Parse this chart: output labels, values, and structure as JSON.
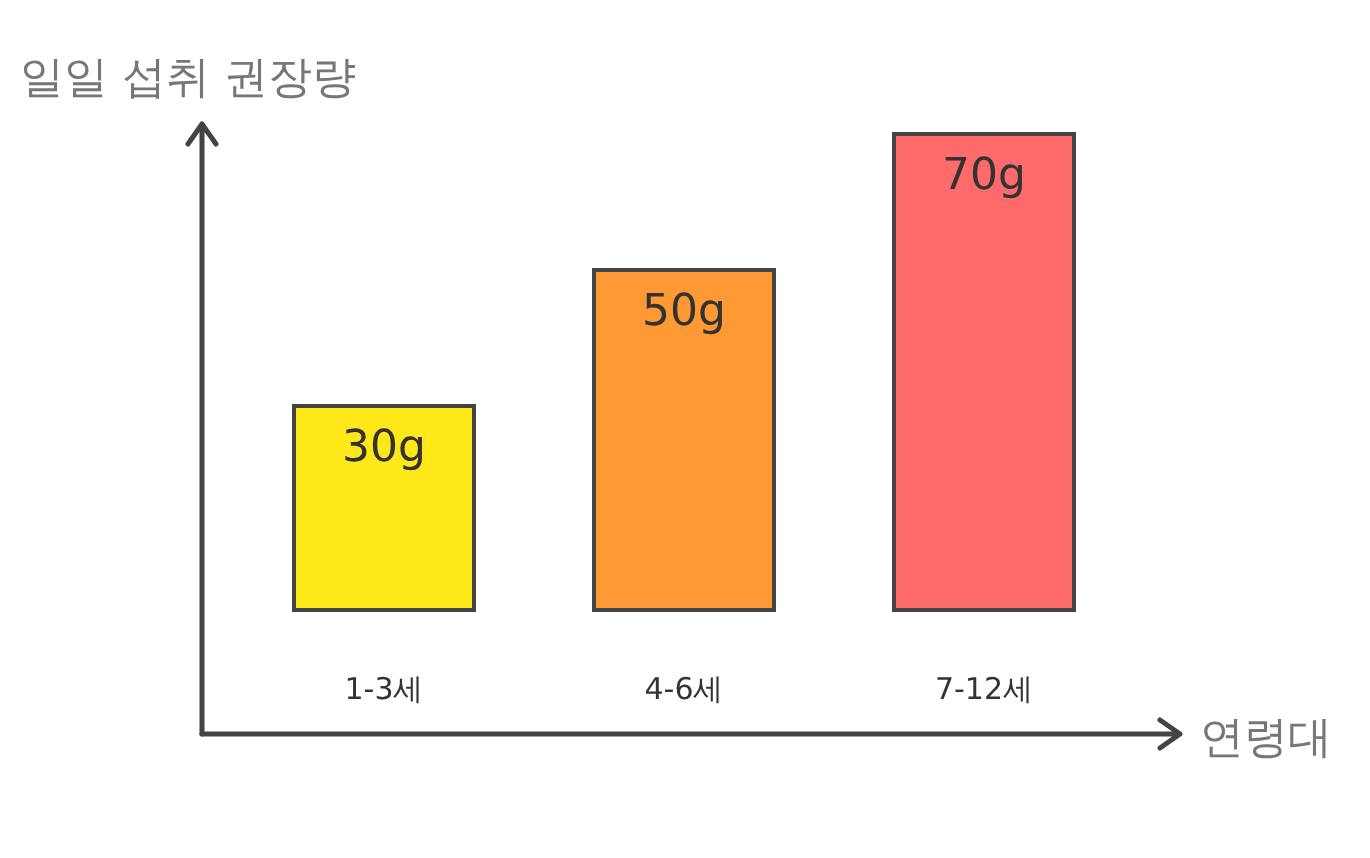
{
  "chart_data": {
    "type": "bar",
    "ylabel": "일일 섭취 권장량",
    "xlabel": "연령대",
    "categories": [
      "1-3세",
      "4-6세",
      "7-12세"
    ],
    "values": [
      30,
      50,
      70
    ],
    "value_labels": [
      "30g",
      "50g",
      "70g"
    ],
    "colors": [
      "#ffe81a",
      "#ff9933",
      "#ff6b6b"
    ],
    "grid": false,
    "legend": false
  }
}
